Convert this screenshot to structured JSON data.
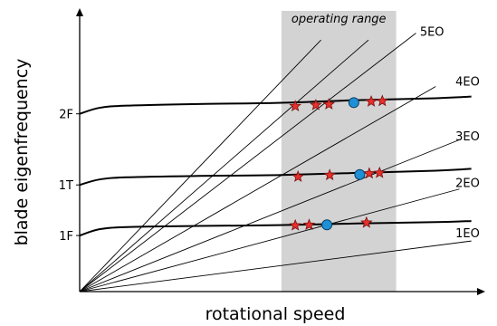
{
  "chart_data": {
    "type": "line",
    "title": "",
    "xlabel": "rotational speed",
    "ylabel": "blade eigenfrequency",
    "xlim": [
      0,
      1
    ],
    "ylim": [
      0,
      1
    ],
    "grid": false,
    "operating_range": {
      "label": "operating range",
      "x": [
        0.51,
        0.8
      ]
    },
    "mode_ticks": [
      "1F",
      "1T",
      "2F"
    ],
    "modes": [
      {
        "name": "1F",
        "points": [
          [
            0,
            0.205
          ],
          [
            0.05,
            0.228
          ],
          [
            0.12,
            0.236
          ],
          [
            0.3,
            0.24
          ],
          [
            0.5,
            0.243
          ],
          [
            0.7,
            0.249
          ],
          [
            0.9,
            0.254
          ],
          [
            0.99,
            0.258
          ]
        ]
      },
      {
        "name": "1T",
        "points": [
          [
            0,
            0.39
          ],
          [
            0.05,
            0.41
          ],
          [
            0.12,
            0.418
          ],
          [
            0.3,
            0.423
          ],
          [
            0.5,
            0.426
          ],
          [
            0.7,
            0.434
          ],
          [
            0.9,
            0.442
          ],
          [
            0.99,
            0.449
          ]
        ]
      },
      {
        "name": "2F",
        "points": [
          [
            0,
            0.65
          ],
          [
            0.05,
            0.672
          ],
          [
            0.12,
            0.68
          ],
          [
            0.3,
            0.686
          ],
          [
            0.5,
            0.69
          ],
          [
            0.7,
            0.7
          ],
          [
            0.9,
            0.707
          ],
          [
            0.99,
            0.713
          ]
        ]
      }
    ],
    "engine_orders": [
      {
        "label": "1EO",
        "end": [
          0.99,
          0.185
        ]
      },
      {
        "label": "2EO",
        "end": [
          0.96,
          0.375
        ]
      },
      {
        "label": "3EO",
        "end": [
          0.96,
          0.555
        ]
      },
      {
        "label": "4EO",
        "end": [
          0.9,
          0.75
        ]
      },
      {
        "label": "5EO",
        "end": [
          0.85,
          0.945
        ]
      },
      {
        "label": "",
        "end": [
          0.73,
          0.92
        ]
      },
      {
        "label": "",
        "end": [
          0.61,
          0.92
        ]
      }
    ],
    "eo_labels": [
      {
        "text": "1EO",
        "at": [
          0.95,
          0.212
        ]
      },
      {
        "text": "2EO",
        "at": [
          0.95,
          0.395
        ]
      },
      {
        "text": "3EO",
        "at": [
          0.95,
          0.567
        ]
      },
      {
        "text": "4EO",
        "at": [
          0.95,
          0.767
        ]
      },
      {
        "text": "5EO",
        "at": [
          0.86,
          0.948
        ]
      }
    ],
    "resonance_stars": [
      [
        0.545,
        0.242
      ],
      [
        0.58,
        0.244
      ],
      [
        0.725,
        0.252
      ],
      [
        0.552,
        0.42
      ],
      [
        0.632,
        0.426
      ],
      [
        0.732,
        0.432
      ],
      [
        0.758,
        0.434
      ],
      [
        0.545,
        0.678
      ],
      [
        0.597,
        0.682
      ],
      [
        0.63,
        0.685
      ],
      [
        0.737,
        0.695
      ],
      [
        0.765,
        0.697
      ]
    ],
    "resonance_circles": [
      [
        0.625,
        0.244
      ],
      [
        0.708,
        0.428
      ],
      [
        0.693,
        0.691
      ]
    ]
  }
}
